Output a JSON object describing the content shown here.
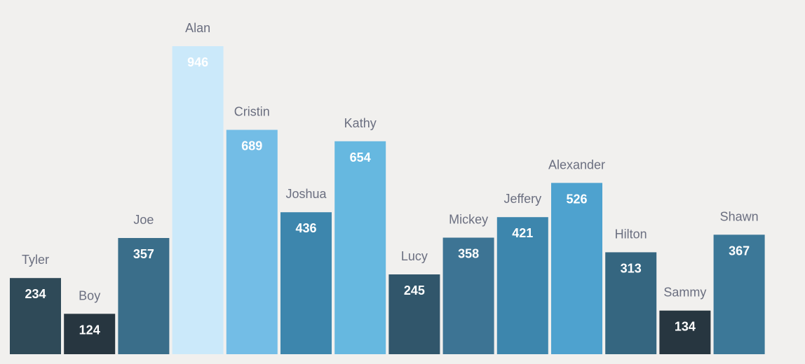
{
  "chart_data": {
    "type": "bar",
    "categories": [
      "Tyler",
      "Boy",
      "Joe",
      "Alan",
      "Cristin",
      "Joshua",
      "Kathy",
      "Lucy",
      "Mickey",
      "Jeffery",
      "Alexander",
      "Hilton",
      "Sammy",
      "Shawn"
    ],
    "values": [
      234,
      124,
      357,
      946,
      689,
      436,
      654,
      245,
      358,
      421,
      526,
      313,
      134,
      367
    ],
    "colors": [
      "#2f4a58",
      "#273640",
      "#3a6e8a",
      "#cbe9fa",
      "#73bde6",
      "#3d86ad",
      "#66b8e0",
      "#31566b",
      "#3d7494",
      "#3d86ad",
      "#4ea2cf",
      "#356680",
      "#273640",
      "#3c7898"
    ],
    "title": "",
    "xlabel": "",
    "ylabel": "",
    "ylim": [
      0,
      946
    ],
    "grid": false,
    "legend": "none"
  }
}
